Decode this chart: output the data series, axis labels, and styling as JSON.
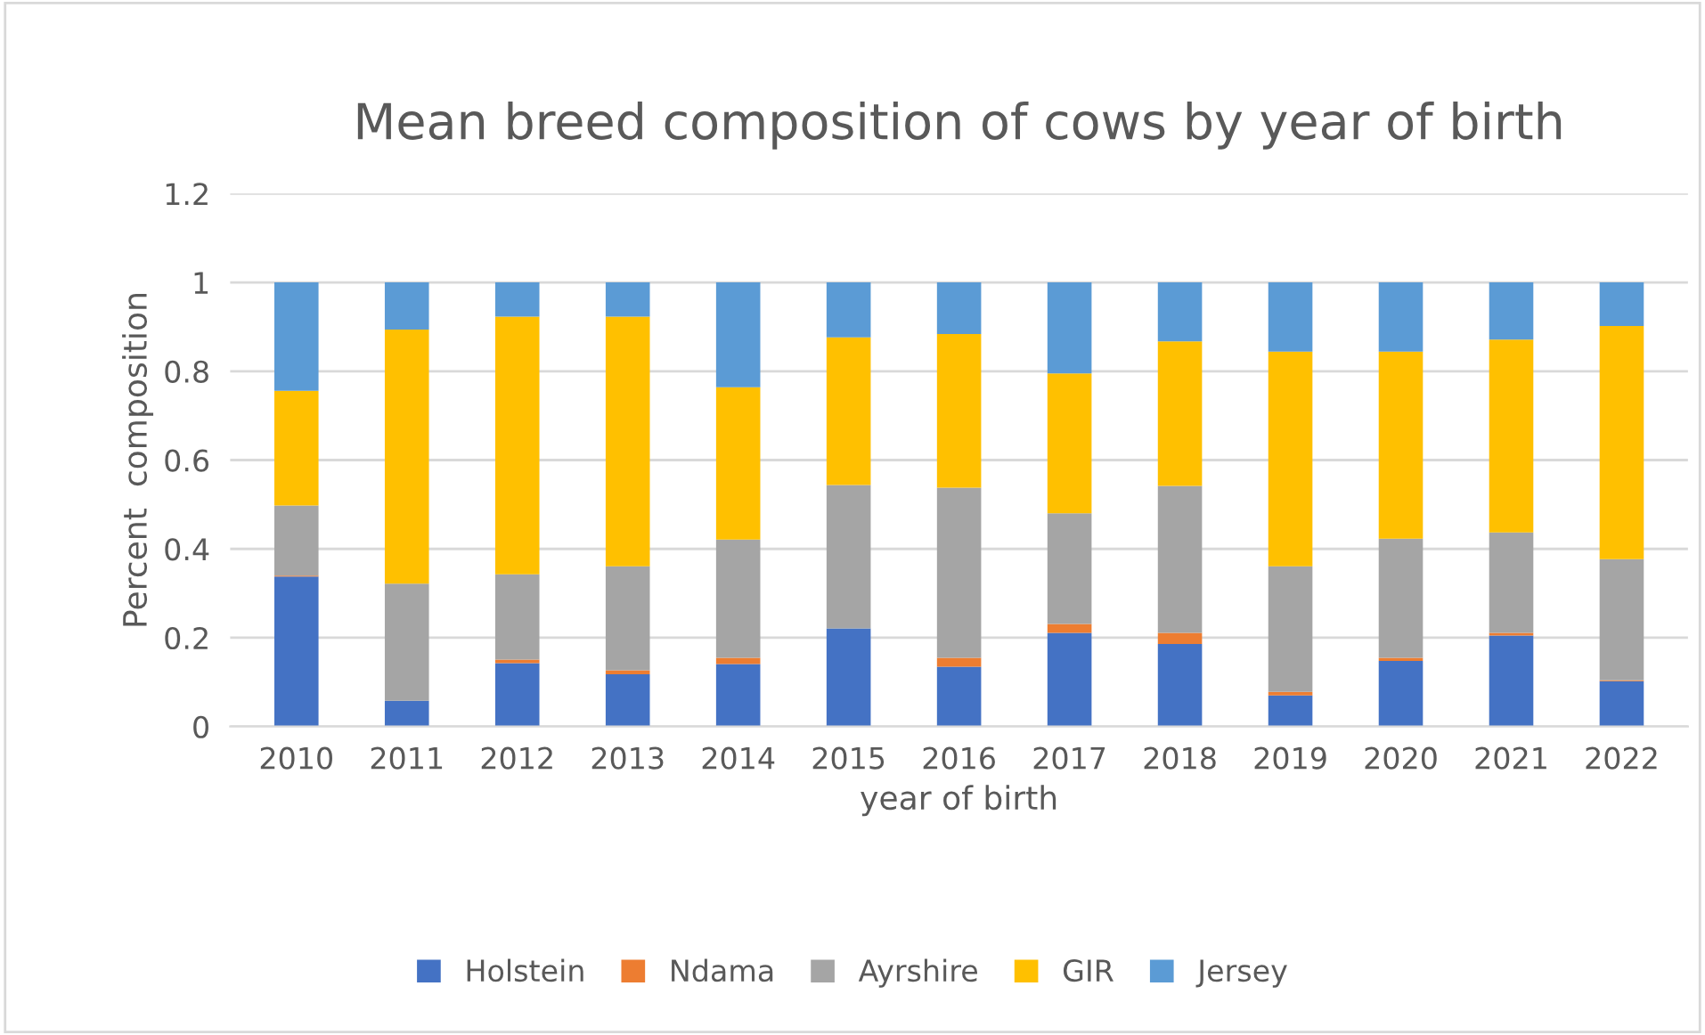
{
  "chart_data": {
    "type": "bar",
    "title": "Mean breed composition of cows by year of birth",
    "xlabel": "year of birth",
    "ylabel": "Percent  composition",
    "categories": [
      "2010",
      "2011",
      "2012",
      "2013",
      "2014",
      "2015",
      "2016",
      "2017",
      "2018",
      "2019",
      "2020",
      "2021",
      "2022"
    ],
    "stacked": true,
    "ylim": [
      0,
      1.2
    ],
    "yticks": [
      0,
      0.2,
      0.4,
      0.6,
      0.8,
      1,
      1.2
    ],
    "grid": "y",
    "legend": "bottom",
    "series": [
      {
        "name": "Holstein",
        "color": "#4472c4",
        "values": [
          0.338,
          0.058,
          0.143,
          0.118,
          0.141,
          0.221,
          0.135,
          0.211,
          0.186,
          0.07,
          0.148,
          0.205,
          0.102
        ]
      },
      {
        "name": "Ndama",
        "color": "#ed7d31",
        "values": [
          0.002,
          0,
          0.008,
          0.009,
          0.014,
          0,
          0.02,
          0.02,
          0.025,
          0.008,
          0.007,
          0.006,
          0.002
        ]
      },
      {
        "name": "Ayrshire",
        "color": "#a5a5a5",
        "values": [
          0.158,
          0.264,
          0.192,
          0.234,
          0.266,
          0.323,
          0.383,
          0.249,
          0.331,
          0.283,
          0.268,
          0.226,
          0.273
        ]
      },
      {
        "name": "GIR",
        "color": "#ffc000",
        "values": [
          0.258,
          0.572,
          0.58,
          0.562,
          0.343,
          0.332,
          0.346,
          0.315,
          0.325,
          0.483,
          0.421,
          0.434,
          0.525
        ]
      },
      {
        "name": "Jersey",
        "color": "#5b9bd5",
        "values": [
          0.244,
          0.106,
          0.077,
          0.077,
          0.236,
          0.124,
          0.116,
          0.205,
          0.133,
          0.156,
          0.156,
          0.129,
          0.098
        ]
      }
    ]
  }
}
